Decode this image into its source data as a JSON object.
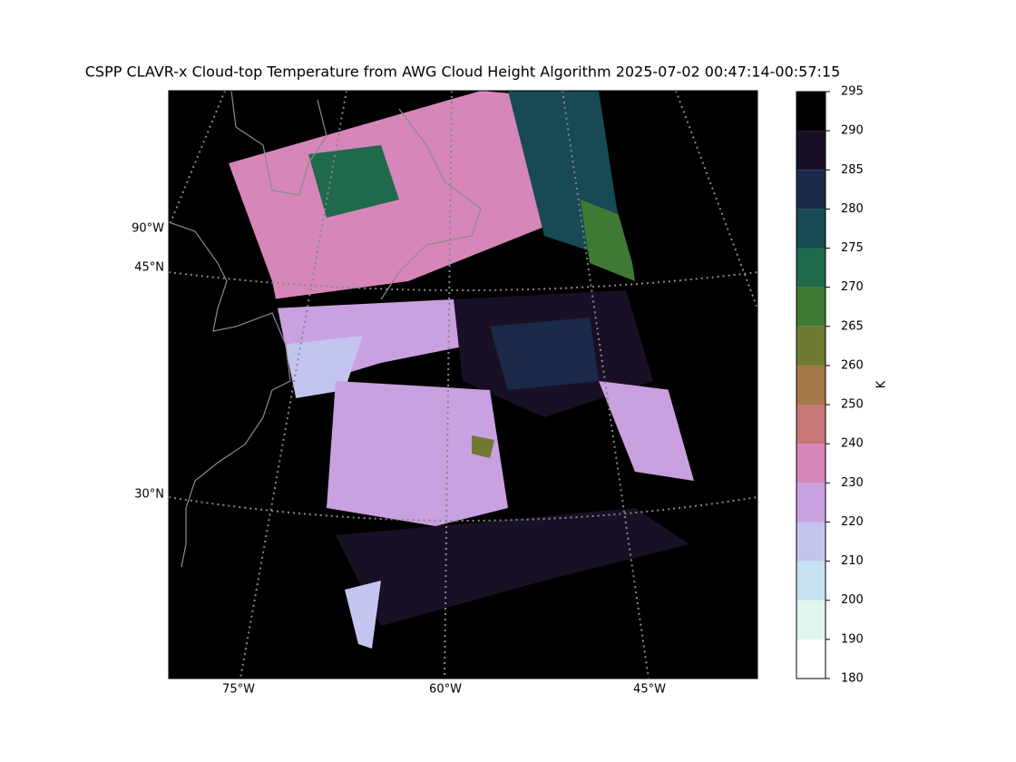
{
  "title": "CSPP CLAVR-x Cloud-top Temperature from AWG Cloud Height Algorithm 2025-07-02 00:47:14-00:57:15",
  "map": {
    "lon_labels": [
      "75°W",
      "60°W",
      "45°W"
    ],
    "lat_labels": [
      "45°N",
      "30°N"
    ],
    "left_lon_label": "90°W"
  },
  "colorbar": {
    "label": "K",
    "boundaries": [
      180,
      190,
      200,
      210,
      220,
      230,
      240,
      250,
      260,
      265,
      270,
      275,
      280,
      285,
      290,
      295
    ],
    "colors": [
      "#ffffff",
      "#dff5ee",
      "#c6e2f2",
      "#c4c4f0",
      "#c9a0e0",
      "#d686b8",
      "#c87676",
      "#a5784a",
      "#707a32",
      "#3f7a35",
      "#1e6a4a",
      "#174a55",
      "#1c2a4a",
      "#1a1026",
      "#000000"
    ]
  }
}
